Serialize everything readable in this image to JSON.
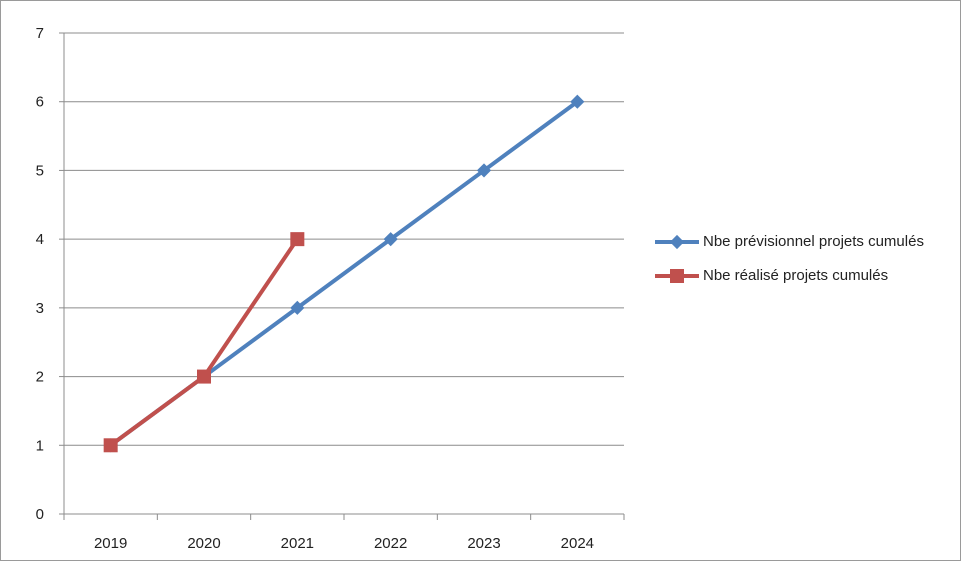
{
  "chart_data": {
    "type": "line",
    "title": "",
    "xlabel": "",
    "ylabel": "",
    "categories": [
      "2019",
      "2020",
      "2021",
      "2022",
      "2023",
      "2024"
    ],
    "ylim": [
      0,
      7
    ],
    "yticks": [
      0,
      1,
      2,
      3,
      4,
      5,
      6,
      7
    ],
    "grid": "horizontal",
    "legend_position": "right",
    "series": [
      {
        "name": "Nbe prévisionnel projets cumulés",
        "values": [
          1,
          2,
          3,
          4,
          5,
          6
        ],
        "color": "#4f81bd",
        "marker": "diamond"
      },
      {
        "name": "Nbe réalisé projets cumulés",
        "values": [
          1,
          2,
          4,
          null,
          null,
          null
        ],
        "color": "#c0504d",
        "marker": "square"
      }
    ]
  }
}
